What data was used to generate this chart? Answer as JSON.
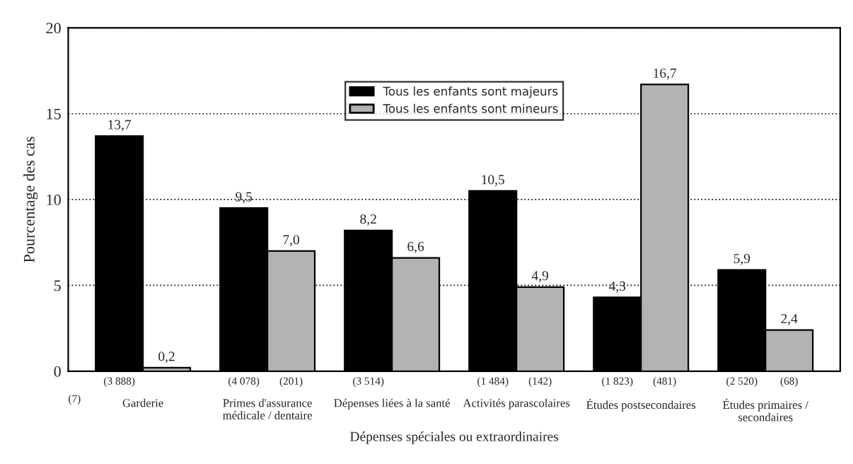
{
  "chart_data": {
    "type": "bar",
    "xlabel": "Dépenses spéciales ou extraordinaires",
    "ylabel": "Pourcentage des cas",
    "categories": [
      "Garderie",
      "Primes d'assurance\nmédicale / dentaire",
      "Dépenses liées à la santé",
      "Activités parascolaires",
      "Études postsecondaires",
      "Études primaires /\nsecondaires"
    ],
    "series": [
      {
        "name": "Tous les enfants sont majeurs",
        "color": "#000000",
        "values": [
          13.7,
          9.5,
          8.2,
          10.5,
          4.3,
          5.9
        ],
        "value_labels": [
          "13,7",
          "9,5",
          "8,2",
          "10,5",
          "4,3",
          "5,9"
        ]
      },
      {
        "name": "Tous les enfants sont mineurs",
        "color": "#b3b3b3",
        "values": [
          0.2,
          7.0,
          6.6,
          4.9,
          16.7,
          2.4
        ],
        "value_labels": [
          "0,2",
          "7,0",
          "6,6",
          "4,9",
          "16,7",
          "2,4"
        ]
      }
    ],
    "annotations": [
      "(3 888)",
      "(7)",
      "(4 078)",
      "(201)",
      "(3 514)",
      "(1 484)",
      "(142)",
      "(1 823)",
      "(481)",
      "(2 520)",
      "(68)"
    ],
    "ylim": [
      0,
      20
    ],
    "yticks": [
      0,
      5,
      10,
      15,
      20
    ],
    "grid": "y",
    "legend": "top"
  }
}
